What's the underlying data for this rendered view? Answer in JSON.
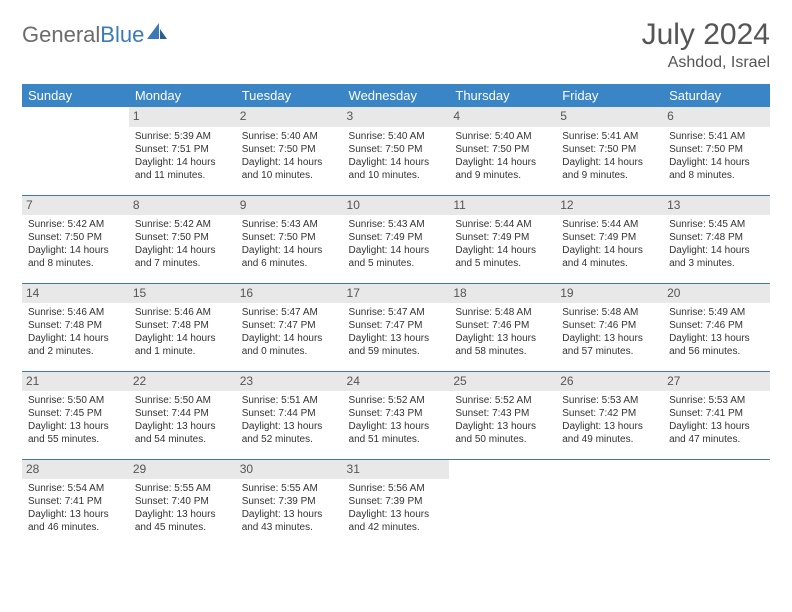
{
  "brand": {
    "name_gray": "General",
    "name_blue": "Blue"
  },
  "title": "July 2024",
  "location": "Ashdod, Israel",
  "colors": {
    "header_bg": "#3a85c6",
    "header_fg": "#ffffff",
    "daynum_bg": "#e8e8e8",
    "row_border": "#3a7ab8",
    "brand_gray": "#6b6b6b",
    "brand_blue": "#3a7ab8",
    "text": "#333333"
  },
  "weekdays": [
    "Sunday",
    "Monday",
    "Tuesday",
    "Wednesday",
    "Thursday",
    "Friday",
    "Saturday"
  ],
  "weeks": [
    [
      {
        "n": "",
        "empty": true
      },
      {
        "n": "1",
        "sunrise": "5:39 AM",
        "sunset": "7:51 PM",
        "daylight": "14 hours and 11 minutes."
      },
      {
        "n": "2",
        "sunrise": "5:40 AM",
        "sunset": "7:50 PM",
        "daylight": "14 hours and 10 minutes."
      },
      {
        "n": "3",
        "sunrise": "5:40 AM",
        "sunset": "7:50 PM",
        "daylight": "14 hours and 10 minutes."
      },
      {
        "n": "4",
        "sunrise": "5:40 AM",
        "sunset": "7:50 PM",
        "daylight": "14 hours and 9 minutes."
      },
      {
        "n": "5",
        "sunrise": "5:41 AM",
        "sunset": "7:50 PM",
        "daylight": "14 hours and 9 minutes."
      },
      {
        "n": "6",
        "sunrise": "5:41 AM",
        "sunset": "7:50 PM",
        "daylight": "14 hours and 8 minutes."
      }
    ],
    [
      {
        "n": "7",
        "sunrise": "5:42 AM",
        "sunset": "7:50 PM",
        "daylight": "14 hours and 8 minutes."
      },
      {
        "n": "8",
        "sunrise": "5:42 AM",
        "sunset": "7:50 PM",
        "daylight": "14 hours and 7 minutes."
      },
      {
        "n": "9",
        "sunrise": "5:43 AM",
        "sunset": "7:50 PM",
        "daylight": "14 hours and 6 minutes."
      },
      {
        "n": "10",
        "sunrise": "5:43 AM",
        "sunset": "7:49 PM",
        "daylight": "14 hours and 5 minutes."
      },
      {
        "n": "11",
        "sunrise": "5:44 AM",
        "sunset": "7:49 PM",
        "daylight": "14 hours and 5 minutes."
      },
      {
        "n": "12",
        "sunrise": "5:44 AM",
        "sunset": "7:49 PM",
        "daylight": "14 hours and 4 minutes."
      },
      {
        "n": "13",
        "sunrise": "5:45 AM",
        "sunset": "7:48 PM",
        "daylight": "14 hours and 3 minutes."
      }
    ],
    [
      {
        "n": "14",
        "sunrise": "5:46 AM",
        "sunset": "7:48 PM",
        "daylight": "14 hours and 2 minutes."
      },
      {
        "n": "15",
        "sunrise": "5:46 AM",
        "sunset": "7:48 PM",
        "daylight": "14 hours and 1 minute."
      },
      {
        "n": "16",
        "sunrise": "5:47 AM",
        "sunset": "7:47 PM",
        "daylight": "14 hours and 0 minutes."
      },
      {
        "n": "17",
        "sunrise": "5:47 AM",
        "sunset": "7:47 PM",
        "daylight": "13 hours and 59 minutes."
      },
      {
        "n": "18",
        "sunrise": "5:48 AM",
        "sunset": "7:46 PM",
        "daylight": "13 hours and 58 minutes."
      },
      {
        "n": "19",
        "sunrise": "5:48 AM",
        "sunset": "7:46 PM",
        "daylight": "13 hours and 57 minutes."
      },
      {
        "n": "20",
        "sunrise": "5:49 AM",
        "sunset": "7:46 PM",
        "daylight": "13 hours and 56 minutes."
      }
    ],
    [
      {
        "n": "21",
        "sunrise": "5:50 AM",
        "sunset": "7:45 PM",
        "daylight": "13 hours and 55 minutes."
      },
      {
        "n": "22",
        "sunrise": "5:50 AM",
        "sunset": "7:44 PM",
        "daylight": "13 hours and 54 minutes."
      },
      {
        "n": "23",
        "sunrise": "5:51 AM",
        "sunset": "7:44 PM",
        "daylight": "13 hours and 52 minutes."
      },
      {
        "n": "24",
        "sunrise": "5:52 AM",
        "sunset": "7:43 PM",
        "daylight": "13 hours and 51 minutes."
      },
      {
        "n": "25",
        "sunrise": "5:52 AM",
        "sunset": "7:43 PM",
        "daylight": "13 hours and 50 minutes."
      },
      {
        "n": "26",
        "sunrise": "5:53 AM",
        "sunset": "7:42 PM",
        "daylight": "13 hours and 49 minutes."
      },
      {
        "n": "27",
        "sunrise": "5:53 AM",
        "sunset": "7:41 PM",
        "daylight": "13 hours and 47 minutes."
      }
    ],
    [
      {
        "n": "28",
        "sunrise": "5:54 AM",
        "sunset": "7:41 PM",
        "daylight": "13 hours and 46 minutes."
      },
      {
        "n": "29",
        "sunrise": "5:55 AM",
        "sunset": "7:40 PM",
        "daylight": "13 hours and 45 minutes."
      },
      {
        "n": "30",
        "sunrise": "5:55 AM",
        "sunset": "7:39 PM",
        "daylight": "13 hours and 43 minutes."
      },
      {
        "n": "31",
        "sunrise": "5:56 AM",
        "sunset": "7:39 PM",
        "daylight": "13 hours and 42 minutes."
      },
      {
        "n": "",
        "empty": true
      },
      {
        "n": "",
        "empty": true
      },
      {
        "n": "",
        "empty": true
      }
    ]
  ],
  "labels": {
    "sunrise": "Sunrise:",
    "sunset": "Sunset:",
    "daylight": "Daylight:"
  }
}
